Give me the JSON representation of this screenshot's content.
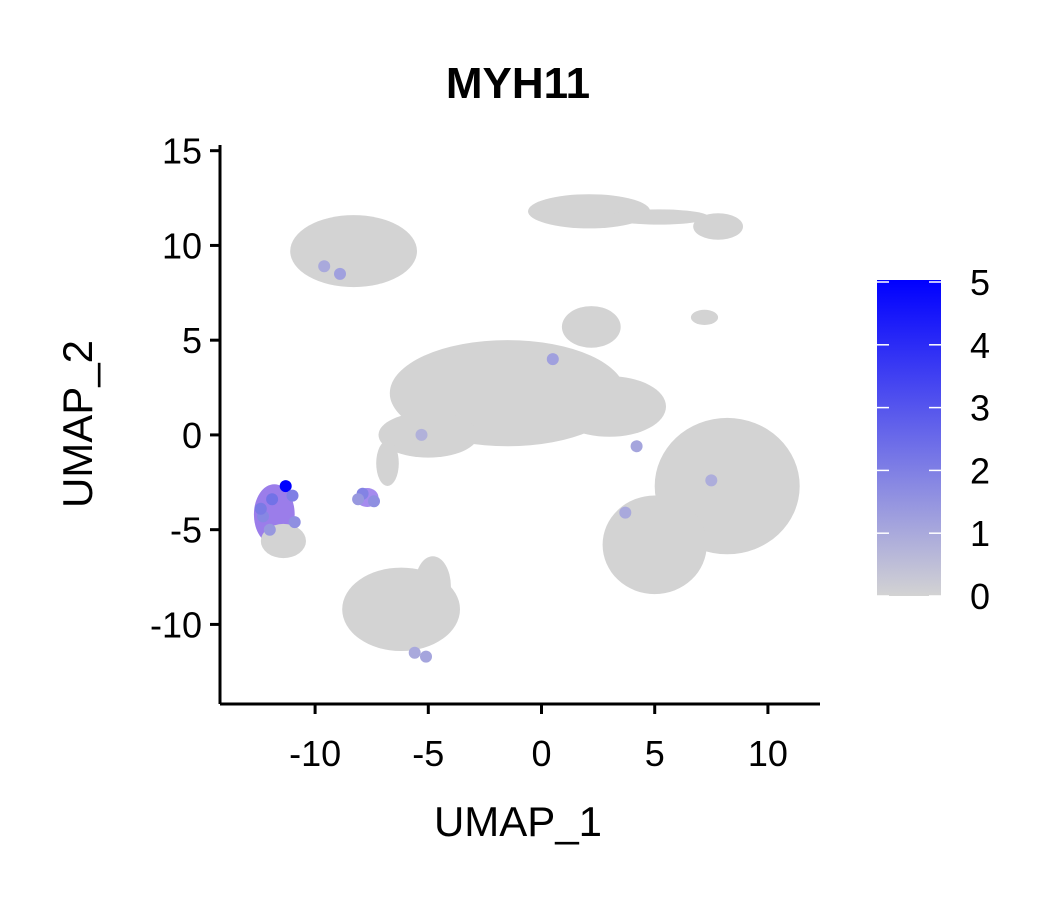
{
  "chart_data": {
    "type": "scatter",
    "title": "MYH11",
    "xlabel": "UMAP_1",
    "ylabel": "UMAP_2",
    "xlim": [
      -14.2,
      12.3
    ],
    "ylim": [
      -14.2,
      15.3
    ],
    "xticks": [
      -10,
      -5,
      0,
      5,
      10
    ],
    "yticks": [
      -10,
      -5,
      0,
      5,
      10,
      15
    ],
    "grid": false,
    "color_scale": {
      "label_values": [
        0,
        1,
        2,
        3,
        4,
        5
      ],
      "min": 0,
      "max": 5,
      "low_color": "#d3d3d3",
      "high_color": "#0000ff",
      "legend_position": "right"
    },
    "clusters": [
      {
        "cx": -8.3,
        "cy": 9.7,
        "rx": 2.8,
        "ry": 1.9,
        "color": "#d3d3d3"
      },
      {
        "cx": 2.1,
        "cy": 11.8,
        "rx": 2.7,
        "ry": 0.9,
        "color": "#d3d3d3"
      },
      {
        "cx": 7.8,
        "cy": 11.0,
        "rx": 1.1,
        "ry": 0.7,
        "color": "#d3d3d3"
      },
      {
        "cx": 5.2,
        "cy": 11.5,
        "rx": 2.2,
        "ry": 0.4,
        "color": "#d3d3d3"
      },
      {
        "cx": 2.2,
        "cy": 5.7,
        "rx": 1.3,
        "ry": 1.1,
        "color": "#d3d3d3"
      },
      {
        "cx": 7.2,
        "cy": 6.2,
        "rx": 0.6,
        "ry": 0.4,
        "color": "#d3d3d3"
      },
      {
        "cx": -1.5,
        "cy": 2.2,
        "rx": 5.2,
        "ry": 2.8,
        "color": "#d3d3d3"
      },
      {
        "cx": -5.0,
        "cy": 0.0,
        "rx": 2.2,
        "ry": 1.2,
        "color": "#d3d3d3"
      },
      {
        "cx": 3.0,
        "cy": 1.5,
        "rx": 2.5,
        "ry": 1.6,
        "color": "#d3d3d3"
      },
      {
        "cx": 8.2,
        "cy": -2.7,
        "rx": 3.2,
        "ry": 3.6,
        "color": "#d3d3d3"
      },
      {
        "cx": 5.0,
        "cy": -5.8,
        "rx": 2.3,
        "ry": 2.6,
        "color": "#d3d3d3"
      },
      {
        "cx": -6.2,
        "cy": -9.2,
        "rx": 2.6,
        "ry": 2.2,
        "color": "#d3d3d3"
      },
      {
        "cx": -4.8,
        "cy": -8.0,
        "rx": 0.8,
        "ry": 1.6,
        "color": "#d3d3d3"
      },
      {
        "cx": -11.8,
        "cy": -4.2,
        "rx": 0.9,
        "ry": 1.6,
        "color": "#9b7dea"
      },
      {
        "cx": -11.4,
        "cy": -5.6,
        "rx": 1.0,
        "ry": 0.9,
        "color": "#d3d3d3"
      },
      {
        "cx": -7.7,
        "cy": -3.3,
        "rx": 0.5,
        "ry": 0.5,
        "color": "#a58bee"
      },
      {
        "cx": -6.8,
        "cy": -1.5,
        "rx": 0.5,
        "ry": 1.2,
        "color": "#d3d3d3"
      }
    ],
    "points": [
      {
        "x": -11.3,
        "y": -2.7,
        "v": 5.0
      },
      {
        "x": -11.9,
        "y": -3.4,
        "v": 2.3
      },
      {
        "x": -12.3,
        "y": -4.3,
        "v": 1.8
      },
      {
        "x": -11.0,
        "y": -3.2,
        "v": 2.0
      },
      {
        "x": -12.0,
        "y": -5.0,
        "v": 1.4
      },
      {
        "x": -10.9,
        "y": -4.6,
        "v": 1.6
      },
      {
        "x": -12.4,
        "y": -3.9,
        "v": 2.1
      },
      {
        "x": -7.9,
        "y": -3.1,
        "v": 1.9
      },
      {
        "x": -7.4,
        "y": -3.5,
        "v": 1.6
      },
      {
        "x": -8.1,
        "y": -3.4,
        "v": 1.4
      },
      {
        "x": -8.9,
        "y": 8.5,
        "v": 1.2
      },
      {
        "x": -9.6,
        "y": 8.9,
        "v": 1.0
      },
      {
        "x": -5.1,
        "y": -11.7,
        "v": 1.1
      },
      {
        "x": -5.6,
        "y": -11.5,
        "v": 1.0
      },
      {
        "x": 0.5,
        "y": 4.0,
        "v": 1.2
      },
      {
        "x": 4.2,
        "y": -0.6,
        "v": 1.1
      },
      {
        "x": 3.7,
        "y": -4.1,
        "v": 1.0
      },
      {
        "x": 7.5,
        "y": -2.4,
        "v": 0.9
      },
      {
        "x": -5.3,
        "y": 0.0,
        "v": 0.8
      }
    ]
  }
}
